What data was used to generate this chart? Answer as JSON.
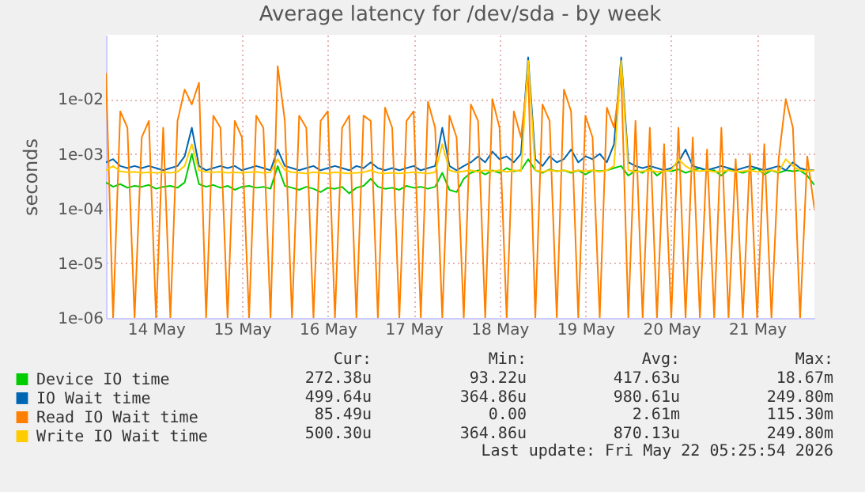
{
  "chart_data": {
    "type": "line",
    "title": "Average latency for /dev/sda - by week",
    "ylabel": "seconds",
    "log": "y",
    "grid": true,
    "legend": "bottom left",
    "line_style": "solid",
    "marker": "none",
    "x": [
      "2026-05-13T22:00",
      "2026-05-14T00:00",
      "2026-05-14T02:00",
      "2026-05-14T04:00",
      "2026-05-14T06:00",
      "2026-05-14T08:00",
      "2026-05-14T10:00",
      "2026-05-14T12:00",
      "2026-05-14T14:00",
      "2026-05-14T16:00",
      "2026-05-14T18:00",
      "2026-05-14T20:00",
      "2026-05-14T22:00",
      "2026-05-15T00:00",
      "2026-05-15T02:00",
      "2026-05-15T04:00",
      "2026-05-15T06:00",
      "2026-05-15T08:00",
      "2026-05-15T10:00",
      "2026-05-15T12:00",
      "2026-05-15T14:00",
      "2026-05-15T16:00",
      "2026-05-15T18:00",
      "2026-05-15T20:00",
      "2026-05-15T22:00",
      "2026-05-16T00:00",
      "2026-05-16T02:00",
      "2026-05-16T04:00",
      "2026-05-16T06:00",
      "2026-05-16T08:00",
      "2026-05-16T10:00",
      "2026-05-16T12:00",
      "2026-05-16T14:00",
      "2026-05-16T16:00",
      "2026-05-16T18:00",
      "2026-05-16T20:00",
      "2026-05-16T22:00",
      "2026-05-17T00:00",
      "2026-05-17T02:00",
      "2026-05-17T04:00",
      "2026-05-17T06:00",
      "2026-05-17T08:00",
      "2026-05-17T10:00",
      "2026-05-17T12:00",
      "2026-05-17T14:00",
      "2026-05-17T16:00",
      "2026-05-17T18:00",
      "2026-05-17T20:00",
      "2026-05-17T22:00",
      "2026-05-18T00:00",
      "2026-05-18T02:00",
      "2026-05-18T04:00",
      "2026-05-18T06:00",
      "2026-05-18T08:00",
      "2026-05-18T10:00",
      "2026-05-18T12:00",
      "2026-05-18T14:00",
      "2026-05-18T16:00",
      "2026-05-18T18:00",
      "2026-05-18T20:00",
      "2026-05-18T22:00",
      "2026-05-19T00:00",
      "2026-05-19T02:00",
      "2026-05-19T04:00",
      "2026-05-19T06:00",
      "2026-05-19T08:00",
      "2026-05-19T10:00",
      "2026-05-19T12:00",
      "2026-05-19T14:00",
      "2026-05-19T16:00",
      "2026-05-19T18:00",
      "2026-05-19T20:00",
      "2026-05-19T22:00",
      "2026-05-20T00:00",
      "2026-05-20T02:00",
      "2026-05-20T04:00",
      "2026-05-20T06:00",
      "2026-05-20T08:00",
      "2026-05-20T10:00",
      "2026-05-20T12:00",
      "2026-05-20T14:00",
      "2026-05-20T16:00",
      "2026-05-20T18:00",
      "2026-05-20T20:00",
      "2026-05-20T22:00",
      "2026-05-21T00:00",
      "2026-05-21T02:00",
      "2026-05-21T04:00",
      "2026-05-21T06:00",
      "2026-05-21T08:00",
      "2026-05-21T10:00",
      "2026-05-21T12:00",
      "2026-05-21T14:00",
      "2026-05-21T16:00",
      "2026-05-21T18:00",
      "2026-05-21T20:00",
      "2026-05-21T22:00",
      "2026-05-22T00:00",
      "2026-05-22T02:00",
      "2026-05-22T04:00"
    ],
    "series": [
      {
        "name": "Device IO time",
        "color": "#00cc00",
        "values": [
          0.0003,
          0.00025,
          0.00028,
          0.00024,
          0.00026,
          0.00025,
          0.00027,
          0.00023,
          0.00025,
          0.00026,
          0.00024,
          0.0003,
          0.001,
          0.00028,
          0.00025,
          0.00027,
          0.00024,
          0.00026,
          0.00022,
          0.00025,
          0.00026,
          0.00024,
          0.00025,
          0.00023,
          0.0006,
          0.00026,
          0.00024,
          0.00022,
          0.00025,
          0.00023,
          0.0002,
          0.00024,
          0.00023,
          0.00025,
          0.00019,
          0.00024,
          0.00026,
          0.00035,
          0.00025,
          0.00023,
          0.00024,
          0.00022,
          0.00026,
          0.00024,
          0.00025,
          0.00023,
          0.00025,
          0.00045,
          0.00022,
          0.0002,
          0.00035,
          0.00045,
          0.0005,
          0.00042,
          0.0005,
          0.00045,
          0.00055,
          0.00048,
          0.0005,
          0.0008,
          0.0005,
          0.00045,
          0.00052,
          0.00048,
          0.0005,
          0.00045,
          0.0005,
          0.00042,
          0.0005,
          0.00048,
          0.0005,
          0.00055,
          0.0006,
          0.0004,
          0.0005,
          0.00045,
          0.00055,
          0.0004,
          0.0005,
          0.00048,
          0.00052,
          0.00045,
          0.0005,
          0.00055,
          0.00048,
          0.0005,
          0.0004,
          0.00052,
          0.00048,
          0.00045,
          0.0005,
          0.00055,
          0.00042,
          0.0005,
          0.00045,
          0.0005,
          0.00048,
          0.0005,
          0.0004,
          0.00027
        ]
      },
      {
        "name": "IO Wait time",
        "color": "#0066b3",
        "values": [
          0.0007,
          0.0008,
          0.0006,
          0.00055,
          0.0006,
          0.00055,
          0.0006,
          0.00055,
          0.0005,
          0.00055,
          0.0006,
          0.0009,
          0.003,
          0.0006,
          0.0005,
          0.00055,
          0.0006,
          0.00055,
          0.0006,
          0.0005,
          0.00055,
          0.0006,
          0.00055,
          0.0005,
          0.0012,
          0.0006,
          0.00055,
          0.0005,
          0.00055,
          0.0006,
          0.0005,
          0.00055,
          0.0006,
          0.00055,
          0.0005,
          0.0006,
          0.00055,
          0.0007,
          0.00055,
          0.0005,
          0.00055,
          0.0005,
          0.00055,
          0.0006,
          0.0005,
          0.00055,
          0.0006,
          0.003,
          0.0006,
          0.0005,
          0.0006,
          0.0007,
          0.0009,
          0.0007,
          0.0011,
          0.0008,
          0.0009,
          0.0007,
          0.001,
          0.058,
          0.0008,
          0.0006,
          0.0009,
          0.0007,
          0.0008,
          0.0012,
          0.0007,
          0.0009,
          0.0008,
          0.001,
          0.0007,
          0.0015,
          0.058,
          0.0007,
          0.0006,
          0.00055,
          0.0006,
          0.00055,
          0.0005,
          0.00055,
          0.0007,
          0.0012,
          0.0006,
          0.00055,
          0.0005,
          0.00055,
          0.0006,
          0.00055,
          0.0005,
          0.00055,
          0.0006,
          0.00055,
          0.0005,
          0.00055,
          0.0006,
          0.0005,
          0.0007,
          0.00055,
          0.0005,
          0.0005
        ]
      },
      {
        "name": "Read IO Wait time",
        "color": "#ff8000",
        "values": [
          0.03,
          1e-06,
          0.006,
          0.003,
          1e-06,
          0.002,
          0.004,
          1e-06,
          0.003,
          1e-06,
          0.004,
          0.015,
          0.008,
          0.02,
          1e-06,
          0.005,
          0.003,
          1e-06,
          0.004,
          0.002,
          1e-06,
          0.005,
          0.003,
          1e-06,
          0.04,
          0.004,
          1e-06,
          0.005,
          0.003,
          1e-06,
          0.004,
          0.006,
          1e-06,
          0.003,
          0.005,
          1e-06,
          0.005,
          0.004,
          1e-06,
          0.007,
          0.003,
          1e-06,
          0.004,
          0.006,
          1e-06,
          0.009,
          0.003,
          1e-06,
          0.005,
          0.002,
          1e-06,
          0.008,
          0.004,
          1e-06,
          0.01,
          0.003,
          1e-06,
          0.006,
          0.002,
          0.03,
          1e-06,
          0.008,
          0.004,
          1e-06,
          0.015,
          0.006,
          1e-06,
          0.005,
          0.002,
          1e-06,
          0.007,
          0.003,
          0.03,
          1e-06,
          0.004,
          1e-06,
          0.003,
          1e-06,
          0.0015,
          1e-06,
          0.003,
          1e-06,
          0.002,
          1e-06,
          0.0012,
          1e-06,
          0.003,
          1e-06,
          0.0008,
          1e-06,
          0.001,
          1e-06,
          0.0015,
          1e-06,
          0.0008,
          0.01,
          0.003,
          1e-06,
          0.0009,
          0.0001
        ]
      },
      {
        "name": "Write IO Wait time",
        "color": "#ffcc00",
        "values": [
          0.0005,
          0.0006,
          0.00048,
          0.00046,
          0.00047,
          0.00045,
          0.00046,
          0.00045,
          0.00046,
          0.00045,
          0.00047,
          0.0006,
          0.0015,
          0.0005,
          0.00047,
          0.00046,
          0.00047,
          0.00045,
          0.00046,
          0.00045,
          0.00046,
          0.00047,
          0.00045,
          0.00046,
          0.0008,
          0.0005,
          0.00046,
          0.00045,
          0.00044,
          0.00046,
          0.00045,
          0.00044,
          0.00046,
          0.00045,
          0.00044,
          0.00045,
          0.00046,
          0.0005,
          0.00045,
          0.00044,
          0.00045,
          0.00044,
          0.00045,
          0.00046,
          0.00045,
          0.00044,
          0.00046,
          0.0015,
          0.0005,
          0.00046,
          0.00048,
          0.0005,
          0.00047,
          0.0005,
          0.00048,
          0.0005,
          0.00047,
          0.0005,
          0.00048,
          0.05,
          0.0005,
          0.00047,
          0.0005,
          0.00048,
          0.0005,
          0.00047,
          0.0005,
          0.00048,
          0.0005,
          0.00047,
          0.0005,
          0.0006,
          0.05,
          0.0005,
          0.00047,
          0.00048,
          0.0005,
          0.00047,
          0.00048,
          0.0005,
          0.0008,
          0.0006,
          0.0005,
          0.00048,
          0.0005,
          0.00047,
          0.00048,
          0.0005,
          0.00047,
          0.00048,
          0.0005,
          0.00047,
          0.00048,
          0.0005,
          0.00047,
          0.0008,
          0.0006,
          0.0005,
          0.00048,
          0.0005
        ]
      }
    ],
    "xlim": [
      "2026-05-13T22:00",
      "2026-05-22T04:00"
    ],
    "xticks": [
      {
        "value": "2026-05-14T12:00",
        "label": "14 May"
      },
      {
        "value": "2026-05-15T12:00",
        "label": "15 May"
      },
      {
        "value": "2026-05-16T12:00",
        "label": "16 May"
      },
      {
        "value": "2026-05-17T12:00",
        "label": "17 May"
      },
      {
        "value": "2026-05-18T12:00",
        "label": "18 May"
      },
      {
        "value": "2026-05-19T12:00",
        "label": "19 May"
      },
      {
        "value": "2026-05-20T12:00",
        "label": "20 May"
      },
      {
        "value": "2026-05-21T12:00",
        "label": "21 May"
      }
    ],
    "ylim": [
      1e-06,
      0.15
    ],
    "yticks": [
      {
        "value": 1e-06,
        "label": "1e-06"
      },
      {
        "value": 1e-05,
        "label": "1e-05"
      },
      {
        "value": 0.0001,
        "label": "1e-04"
      },
      {
        "value": 0.001,
        "label": "1e-03"
      },
      {
        "value": 0.01,
        "label": "1e-02"
      }
    ],
    "annotations": [
      "Cur:",
      "Min:",
      "Avg:",
      "Max:",
      "272.38u",
      "93.22u",
      "417.63u",
      "18.67m",
      "499.64u",
      "364.86u",
      "980.61u",
      "249.80m",
      "85.49u",
      "0.00",
      "2.61m",
      "115.30m",
      "500.30u",
      "364.86u",
      "870.13u",
      "249.80m",
      "Last update: Fri May 22 05:25:54 2026"
    ]
  }
}
